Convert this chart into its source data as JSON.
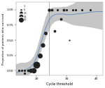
{
  "title": "",
  "xlabel": "Cycle threshold",
  "ylabel": "Proportion of patients who survived",
  "xlim": [
    13,
    42
  ],
  "ylim": [
    -0.08,
    1.12
  ],
  "xticks": [
    20,
    30,
    40
  ],
  "yticks": [
    0.0,
    0.25,
    0.5,
    0.75,
    1.0
  ],
  "vline_x": 24,
  "background_color": "#ffffff",
  "scatter_data": [
    {
      "ct": 14,
      "surv": 0.0,
      "n": 2
    },
    {
      "ct": 15,
      "surv": 0.0,
      "n": 2
    },
    {
      "ct": 16,
      "surv": 0.0,
      "n": 2
    },
    {
      "ct": 17,
      "surv": 0.0,
      "n": 3
    },
    {
      "ct": 18,
      "surv": 0.0,
      "n": 8
    },
    {
      "ct": 19,
      "surv": 0.0,
      "n": 12
    },
    {
      "ct": 20,
      "surv": 0.1,
      "n": 20
    },
    {
      "ct": 21,
      "surv": 0.25,
      "n": 10
    },
    {
      "ct": 22,
      "surv": 0.42,
      "n": 8
    },
    {
      "ct": 23,
      "surv": 0.62,
      "n": 5
    },
    {
      "ct": 24,
      "surv": 1.0,
      "n": 4
    },
    {
      "ct": 25,
      "surv": 1.0,
      "n": 3
    },
    {
      "ct": 26,
      "surv": 0.65,
      "n": 3
    },
    {
      "ct": 27,
      "surv": 1.0,
      "n": 2
    },
    {
      "ct": 28,
      "surv": 0.85,
      "n": 3
    },
    {
      "ct": 29,
      "surv": 1.0,
      "n": 3
    },
    {
      "ct": 30,
      "surv": 1.0,
      "n": 2
    },
    {
      "ct": 31,
      "surv": 0.5,
      "n": 1
    },
    {
      "ct": 32,
      "surv": 1.0,
      "n": 2
    },
    {
      "ct": 33,
      "surv": 1.0,
      "n": 2
    },
    {
      "ct": 35,
      "surv": 1.0,
      "n": 2
    },
    {
      "ct": 38,
      "surv": 1.0,
      "n": 2
    },
    {
      "ct": 16,
      "surv": -0.04,
      "n": 2
    }
  ],
  "loess_x": [
    13,
    14,
    15,
    16,
    17,
    18,
    19,
    20,
    21,
    22,
    23,
    24,
    25,
    26,
    27,
    28,
    29,
    30,
    31,
    32,
    33,
    35,
    38,
    40,
    42
  ],
  "loess_y": [
    -0.04,
    -0.02,
    0.0,
    0.01,
    0.03,
    0.06,
    0.12,
    0.22,
    0.38,
    0.55,
    0.7,
    0.82,
    0.89,
    0.92,
    0.93,
    0.93,
    0.93,
    0.92,
    0.92,
    0.92,
    0.93,
    0.94,
    0.96,
    0.97,
    0.97
  ],
  "loess_lower": [
    -0.18,
    -0.16,
    -0.13,
    -0.11,
    -0.08,
    -0.05,
    0.01,
    0.09,
    0.24,
    0.39,
    0.53,
    0.65,
    0.75,
    0.8,
    0.82,
    0.82,
    0.81,
    0.79,
    0.77,
    0.75,
    0.74,
    0.73,
    0.71,
    0.69,
    0.67
  ],
  "loess_upper": [
    0.1,
    0.12,
    0.13,
    0.13,
    0.14,
    0.17,
    0.23,
    0.35,
    0.52,
    0.71,
    0.87,
    0.99,
    1.03,
    1.04,
    1.04,
    1.04,
    1.05,
    1.05,
    1.07,
    1.09,
    1.12,
    1.15,
    1.21,
    1.25,
    1.27
  ],
  "line_color": "#6b8fbe",
  "ci_color": "#c0c0c0",
  "dot_color": "#222222",
  "vline_color": "#999999",
  "legend_sizes": [
    1,
    5,
    10,
    15,
    20
  ],
  "legend_labels": [
    "1",
    "5",
    "10",
    "15",
    "20"
  ],
  "dot_scale": 2.5
}
